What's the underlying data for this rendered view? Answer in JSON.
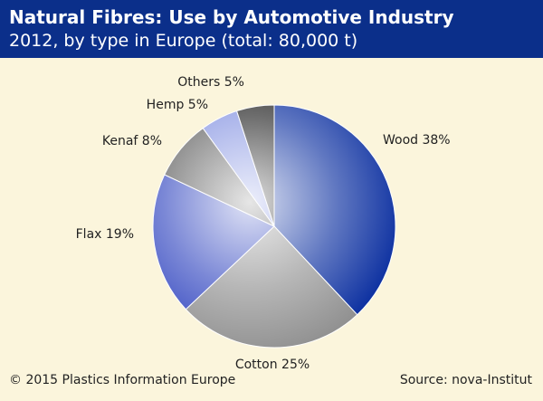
{
  "header": {
    "title": "Natural Fibres: Use by Automotive Industry",
    "subtitle": "2012, by type in Europe (total: 80,000 t)"
  },
  "footer": {
    "copyright": "© 2015 Plastics Information Europe",
    "source": "Source: nova-Institut"
  },
  "chart_data": {
    "type": "pie",
    "slices": [
      {
        "label": "Wood",
        "value": 38,
        "text": "Wood 38%",
        "color": "#0b2fa0"
      },
      {
        "label": "Cotton",
        "value": 25,
        "text": "Cotton 25%",
        "color": "#8f8f8f"
      },
      {
        "label": "Flax",
        "value": 19,
        "text": "Flax 19%",
        "color": "#3347c0"
      },
      {
        "label": "Kenaf",
        "value": 8,
        "text": "Kenaf 8%",
        "color": "#5a5a5a"
      },
      {
        "label": "Hemp",
        "value": 5,
        "text": "Hemp 5%",
        "color": "#7f8ee0"
      },
      {
        "label": "Others",
        "value": 5,
        "text": "Others 5%",
        "color": "#1e1e1e"
      }
    ],
    "start_angle_deg": 0,
    "direction": "clockwise"
  }
}
